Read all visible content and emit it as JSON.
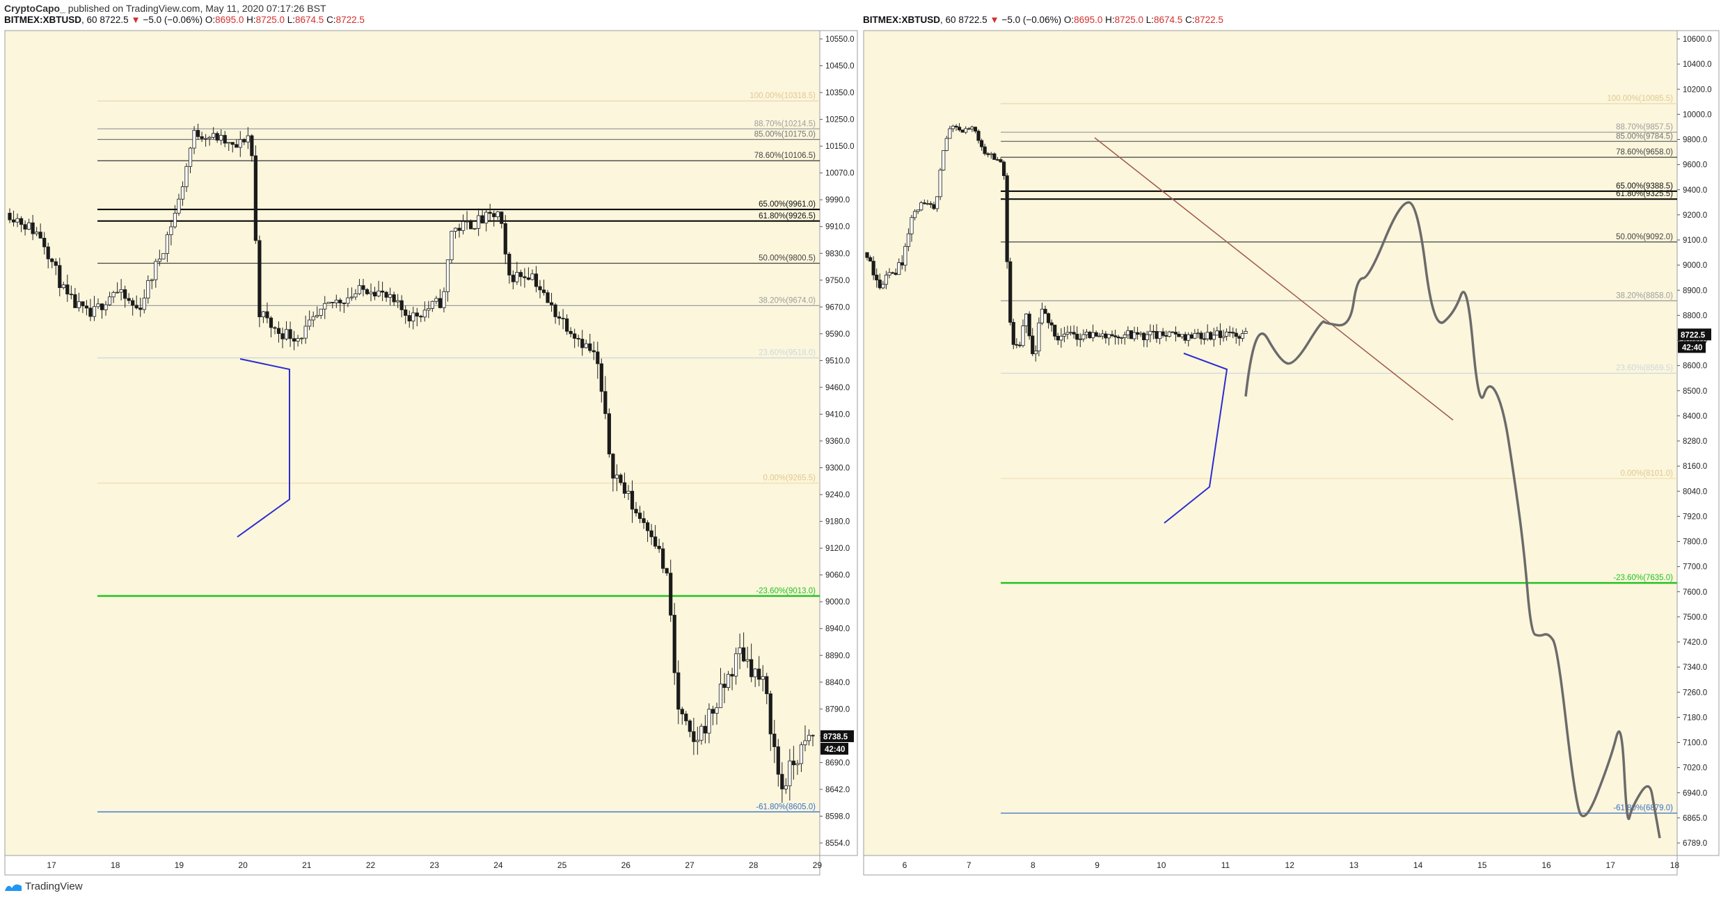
{
  "header": {
    "author": "CryptoCapo_",
    "published": "published on TradingView.com, May 11, 2020 07:17:26 BST"
  },
  "footer": {
    "brand": "TradingView"
  },
  "chart_data": [
    {
      "type": "candlestick",
      "symbol": "BITMEX:XBTUSD",
      "interval": "60",
      "last": "8722.5",
      "change": "−5.0 (−0.06%)",
      "open": "8695.0",
      "high": "8725.0",
      "low": "8674.5",
      "close": "8722.5",
      "price_axis_ticks": [
        "10550.0",
        "10450.0",
        "10350.0",
        "10250.0",
        "10150.0",
        "10070.0",
        "9990.0",
        "9910.0",
        "9830.0",
        "9750.0",
        "9670.0",
        "9590.0",
        "9510.0",
        "9460.0",
        "9410.0",
        "9360.0",
        "9300.0",
        "9240.0",
        "9180.0",
        "9120.0",
        "9060.0",
        "9000.0",
        "8940.0",
        "8890.0",
        "8840.0",
        "8790.0",
        "8740.0",
        "8690.0",
        "8642.0",
        "8598.0",
        "8554.0"
      ],
      "date_axis_ticks": [
        "17",
        "18",
        "19",
        "20",
        "21",
        "22",
        "23",
        "24",
        "25",
        "26",
        "27",
        "28",
        "29"
      ],
      "price_label": "8738.5",
      "countdown": "42:40",
      "fib_levels": [
        {
          "label": "100.00%(10318.5)",
          "price": 10318.5,
          "color": "#ecd9b5"
        },
        {
          "label": "88.70%(10214.5)",
          "price": 10214.5,
          "color": "#9e9e9e"
        },
        {
          "label": "85.00%(10175.0)",
          "price": 10175.0,
          "color": "#757575"
        },
        {
          "label": "78.60%(10106.5)",
          "price": 10106.5,
          "color": "#424242"
        },
        {
          "label": "65.00%(9961.0)",
          "price": 9961.0,
          "color": "#000000"
        },
        {
          "label": "61.80%(9926.5)",
          "price": 9926.5,
          "color": "#000000"
        },
        {
          "label": "50.00%(9800.5)",
          "price": 9800.5,
          "color": "#424242"
        },
        {
          "label": "38.20%(9674.0)",
          "price": 9674.0,
          "color": "#9e9e9e"
        },
        {
          "label": "23.60%(9518.0)",
          "price": 9518.0,
          "color": "#cfd8dc"
        },
        {
          "label": "0.00%(9265.5)",
          "price": 9265.5,
          "color": "#f3dfb3"
        },
        {
          "label": "-23.60%(9013.0)",
          "price": 9013.0,
          "color": "#22c322"
        },
        {
          "label": "-61.80%(8605.0)",
          "price": 8605.0,
          "color": "#3a6fc9"
        }
      ]
    },
    {
      "type": "candlestick",
      "symbol": "BITMEX:XBTUSD",
      "interval": "60",
      "last": "8722.5",
      "change": "−5.0 (−0.06%)",
      "open": "8695.0",
      "high": "8725.0",
      "low": "8674.5",
      "close": "8722.5",
      "price_axis_ticks": [
        "10600.0",
        "10400.0",
        "10200.0",
        "10000.0",
        "9800.0",
        "9600.0",
        "9400.0",
        "9200.0",
        "9100.0",
        "9000.0",
        "8900.0",
        "8800.0",
        "8700.0",
        "8600.0",
        "8500.0",
        "8400.0",
        "8280.0",
        "8160.0",
        "8040.0",
        "7920.0",
        "7800.0",
        "7700.0",
        "7600.0",
        "7500.0",
        "7420.0",
        "7340.0",
        "7260.0",
        "7180.0",
        "7100.0",
        "7020.0",
        "6940.0",
        "6865.0",
        "6789.0"
      ],
      "date_axis_ticks": [
        "6",
        "7",
        "8",
        "9",
        "10",
        "11",
        "12",
        "13",
        "14",
        "15",
        "16",
        "17",
        "18"
      ],
      "price_label": "8722.5",
      "countdown": "42:40",
      "fib_levels": [
        {
          "label": "100.00%(10085.5)",
          "price": 10085.5,
          "color": "#ecd9b5"
        },
        {
          "label": "88.70%(9857.5)",
          "price": 9857.5,
          "color": "#9e9e9e"
        },
        {
          "label": "85.00%(9784.5)",
          "price": 9784.5,
          "color": "#757575"
        },
        {
          "label": "78.60%(9658.0)",
          "price": 9658.0,
          "color": "#424242"
        },
        {
          "label": "65.00%(9388.5)",
          "price": 9388.5,
          "color": "#000000"
        },
        {
          "label": "61.80%(9325.5)",
          "price": 9325.5,
          "color": "#000000"
        },
        {
          "label": "50.00%(9092.0)",
          "price": 9092.0,
          "color": "#424242"
        },
        {
          "label": "38.20%(8858.0)",
          "price": 8858.0,
          "color": "#9e9e9e"
        },
        {
          "label": "23.60%(8569.5)",
          "price": 8569.5,
          "color": "#cfd8dc"
        },
        {
          "label": "0.00%(8101.0)",
          "price": 8101.0,
          "color": "#f3dfb3"
        },
        {
          "label": "-23.60%(7635.0)",
          "price": 7635.0,
          "color": "#22c322"
        },
        {
          "label": "-61.80%(6879.0)",
          "price": 6879.0,
          "color": "#3a6fc9"
        }
      ]
    }
  ]
}
